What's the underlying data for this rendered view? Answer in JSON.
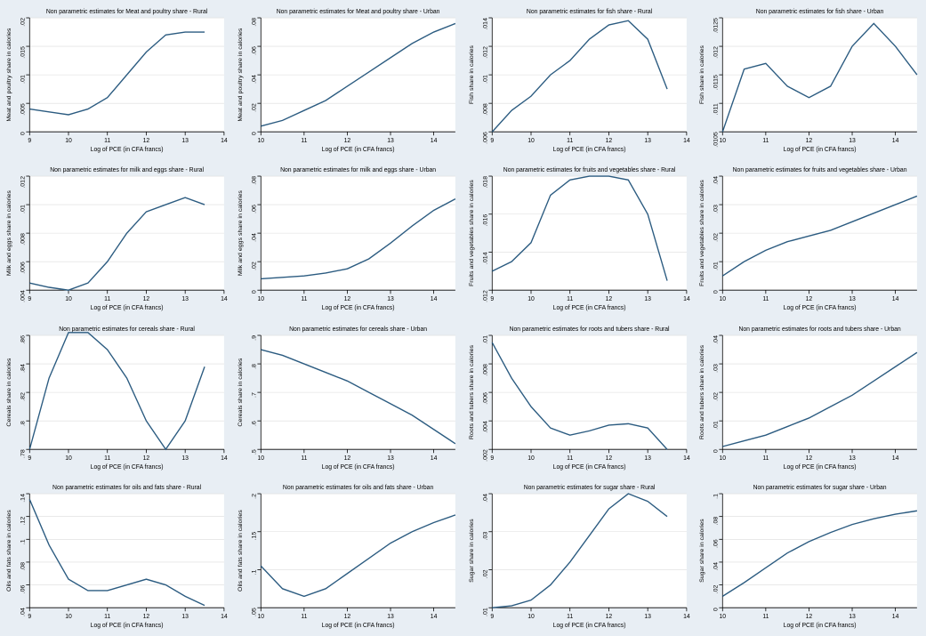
{
  "global": {
    "background_color": "#e8eef4",
    "plot_background_color": "#ffffff",
    "line_color": "#2b5b80",
    "grid_color": "#dcdcdc",
    "axis_color": "#000000",
    "title_fontsize": 7,
    "axis_label_fontsize": 7,
    "tick_fontsize": 7,
    "line_width": 1.4,
    "xlabel": "Log of PCE (in CFA francs)"
  },
  "panels": [
    {
      "id": "meat-rural",
      "title": "Non parametric estimates for Meat and poultry share - Rural",
      "ylabel": "Meat and poultry share in calories",
      "xlim": [
        9,
        14
      ],
      "xticks": [
        9,
        10,
        11,
        12,
        13,
        14
      ],
      "ylim": [
        0,
        0.02
      ],
      "yticks": [
        0,
        0.005,
        0.01,
        0.015,
        0.02
      ],
      "ytick_labels": [
        "0",
        ".005",
        ".01",
        ".015",
        ".02"
      ],
      "series": {
        "x": [
          9,
          9.5,
          10,
          10.5,
          11,
          11.5,
          12,
          12.5,
          13,
          13.5
        ],
        "y": [
          0.004,
          0.0035,
          0.003,
          0.004,
          0.006,
          0.01,
          0.014,
          0.017,
          0.0175,
          0.0175
        ]
      }
    },
    {
      "id": "meat-urban",
      "title": "Non parametric estimates for Meat and poultry share - Urban",
      "ylabel": "Meat and poultry share in calories",
      "xlim": [
        10,
        14.5
      ],
      "xticks": [
        10,
        11,
        12,
        13,
        14
      ],
      "ylim": [
        0,
        0.08
      ],
      "yticks": [
        0,
        0.02,
        0.04,
        0.06,
        0.08
      ],
      "ytick_labels": [
        "0",
        ".02",
        ".04",
        ".06",
        ".08"
      ],
      "series": {
        "x": [
          10,
          10.5,
          11,
          11.5,
          12,
          12.5,
          13,
          13.5,
          14,
          14.5
        ],
        "y": [
          0.004,
          0.008,
          0.015,
          0.022,
          0.032,
          0.042,
          0.052,
          0.062,
          0.07,
          0.076
        ]
      }
    },
    {
      "id": "fish-rural",
      "title": "Non parametric estimates for fish share - Rural",
      "ylabel": "Fish share in calories",
      "xlim": [
        9,
        14
      ],
      "xticks": [
        9,
        10,
        11,
        12,
        13,
        14
      ],
      "ylim": [
        0.006,
        0.014
      ],
      "yticks": [
        0.006,
        0.008,
        0.01,
        0.012,
        0.014
      ],
      "ytick_labels": [
        ".006",
        ".008",
        ".01",
        ".012",
        ".014"
      ],
      "series": {
        "x": [
          9,
          9.5,
          10,
          10.5,
          11,
          11.5,
          12,
          12.5,
          13,
          13.5
        ],
        "y": [
          0.006,
          0.0075,
          0.0085,
          0.01,
          0.011,
          0.0125,
          0.0135,
          0.0138,
          0.0125,
          0.009
        ]
      }
    },
    {
      "id": "fish-urban",
      "title": "Non parametric estimates for fish share - Urban",
      "ylabel": "Fish share in calories",
      "xlim": [
        10,
        14.5
      ],
      "xticks": [
        10,
        11,
        12,
        13,
        14
      ],
      "ylim": [
        0.0105,
        0.0125
      ],
      "yticks": [
        0.0105,
        0.011,
        0.0115,
        0.012,
        0.0125
      ],
      "ytick_labels": [
        ".0105",
        ".011",
        ".0115",
        ".012",
        ".0125"
      ],
      "series": {
        "x": [
          10,
          10.5,
          11,
          11.5,
          12,
          12.5,
          13,
          13.5,
          14,
          14.5
        ],
        "y": [
          0.0105,
          0.0116,
          0.0117,
          0.0113,
          0.0111,
          0.0113,
          0.012,
          0.0124,
          0.012,
          0.0115
        ]
      }
    },
    {
      "id": "milk-rural",
      "title": "Non parametric estimates for milk and eggs share - Rural",
      "ylabel": "Milk and eggs share in calories",
      "xlim": [
        9,
        14
      ],
      "xticks": [
        9,
        10,
        11,
        12,
        13,
        14
      ],
      "ylim": [
        0.004,
        0.012
      ],
      "yticks": [
        0.004,
        0.006,
        0.008,
        0.01,
        0.012
      ],
      "ytick_labels": [
        ".004",
        ".006",
        ".008",
        ".01",
        ".012"
      ],
      "series": {
        "x": [
          9,
          9.5,
          10,
          10.5,
          11,
          11.5,
          12,
          12.5,
          13,
          13.5
        ],
        "y": [
          0.0045,
          0.0042,
          0.004,
          0.0045,
          0.006,
          0.008,
          0.0095,
          0.01,
          0.0105,
          0.01
        ]
      }
    },
    {
      "id": "milk-urban",
      "title": "Non parametric estimates for milk and eggs share - Urban",
      "ylabel": "Milk and eggs share in calories",
      "xlim": [
        10,
        14.5
      ],
      "xticks": [
        10,
        11,
        12,
        13,
        14
      ],
      "ylim": [
        0,
        0.08
      ],
      "yticks": [
        0,
        0.02,
        0.04,
        0.06,
        0.08
      ],
      "ytick_labels": [
        "0",
        ".02",
        ".04",
        ".06",
        ".08"
      ],
      "series": {
        "x": [
          10,
          10.5,
          11,
          11.5,
          12,
          12.5,
          13,
          13.5,
          14,
          14.5
        ],
        "y": [
          0.008,
          0.009,
          0.01,
          0.012,
          0.015,
          0.022,
          0.033,
          0.045,
          0.056,
          0.064
        ]
      }
    },
    {
      "id": "fruits-rural",
      "title": "Non parametric estimates for fruits and vegetables share - Rural",
      "ylabel": "Fruits and vegetables share in calories",
      "xlim": [
        9,
        14
      ],
      "xticks": [
        9,
        10,
        11,
        12,
        13,
        14
      ],
      "ylim": [
        0.012,
        0.018
      ],
      "yticks": [
        0.012,
        0.014,
        0.016,
        0.018
      ],
      "ytick_labels": [
        ".012",
        ".014",
        ".016",
        ".018"
      ],
      "series": {
        "x": [
          9,
          9.5,
          10,
          10.5,
          11,
          11.5,
          12,
          12.5,
          13,
          13.5
        ],
        "y": [
          0.013,
          0.0135,
          0.0145,
          0.017,
          0.0178,
          0.018,
          0.018,
          0.0178,
          0.016,
          0.0125
        ]
      }
    },
    {
      "id": "fruits-urban",
      "title": "Non parametric estimates for fruits and vegetables share - Urban",
      "ylabel": "Fruits and vegetables share in calories",
      "xlim": [
        10,
        14.5
      ],
      "xticks": [
        10,
        11,
        12,
        13,
        14
      ],
      "ylim": [
        0,
        0.04
      ],
      "yticks": [
        0,
        0.01,
        0.02,
        0.03,
        0.04
      ],
      "ytick_labels": [
        "0",
        ".01",
        ".02",
        ".03",
        ".04"
      ],
      "series": {
        "x": [
          10,
          10.5,
          11,
          11.5,
          12,
          12.5,
          13,
          13.5,
          14,
          14.5
        ],
        "y": [
          0.005,
          0.01,
          0.014,
          0.017,
          0.019,
          0.021,
          0.024,
          0.027,
          0.03,
          0.033
        ]
      }
    },
    {
      "id": "cereals-rural",
      "title": "Non parametric estimates for cereals share - Rural",
      "ylabel": "Cereals share in calories",
      "xlim": [
        9,
        14
      ],
      "xticks": [
        9,
        10,
        11,
        12,
        13,
        14
      ],
      "ylim": [
        0.78,
        0.86
      ],
      "yticks": [
        0.78,
        0.8,
        0.82,
        0.84,
        0.86
      ],
      "ytick_labels": [
        ".78",
        ".8",
        ".82",
        ".84",
        ".86"
      ],
      "series": {
        "x": [
          9,
          9.5,
          10,
          10.5,
          11,
          11.5,
          12,
          12.5,
          13,
          13.5
        ],
        "y": [
          0.78,
          0.83,
          0.862,
          0.862,
          0.85,
          0.83,
          0.8,
          0.78,
          0.8,
          0.838
        ]
      }
    },
    {
      "id": "cereals-urban",
      "title": "Non parametric estimates for cereals share - Urban",
      "ylabel": "Cereals share in calories",
      "xlim": [
        10,
        14.5
      ],
      "xticks": [
        10,
        11,
        12,
        13,
        14
      ],
      "ylim": [
        0.5,
        0.9
      ],
      "yticks": [
        0.5,
        0.6,
        0.7,
        0.8,
        0.9
      ],
      "ytick_labels": [
        ".5",
        ".6",
        ".7",
        ".8",
        ".9"
      ],
      "series": {
        "x": [
          10,
          10.5,
          11,
          11.5,
          12,
          12.5,
          13,
          13.5,
          14,
          14.5
        ],
        "y": [
          0.85,
          0.83,
          0.8,
          0.77,
          0.74,
          0.7,
          0.66,
          0.62,
          0.57,
          0.52
        ]
      }
    },
    {
      "id": "roots-rural",
      "title": "Non parametric estimates for roots and tubers share - Rural",
      "ylabel": "Roots and tubers share in calories",
      "xlim": [
        9,
        14
      ],
      "xticks": [
        9,
        10,
        11,
        12,
        13,
        14
      ],
      "ylim": [
        0.002,
        0.01
      ],
      "yticks": [
        0.002,
        0.004,
        0.006,
        0.008,
        0.01
      ],
      "ytick_labels": [
        ".002",
        ".004",
        ".006",
        ".008",
        ".01"
      ],
      "series": {
        "x": [
          9,
          9.5,
          10,
          10.5,
          11,
          11.5,
          12,
          12.5,
          13,
          13.5
        ],
        "y": [
          0.0095,
          0.007,
          0.005,
          0.0035,
          0.003,
          0.0033,
          0.0037,
          0.0038,
          0.0035,
          0.002
        ]
      }
    },
    {
      "id": "roots-urban",
      "title": "Non parametric estimates for roots and tubers share - Urban",
      "ylabel": "Roots and tubers share in calories",
      "xlim": [
        10,
        14.5
      ],
      "xticks": [
        10,
        11,
        12,
        13,
        14
      ],
      "ylim": [
        0,
        0.04
      ],
      "yticks": [
        0,
        0.01,
        0.02,
        0.03,
        0.04
      ],
      "ytick_labels": [
        "0",
        ".01",
        ".02",
        ".03",
        ".04"
      ],
      "series": {
        "x": [
          10,
          10.5,
          11,
          11.5,
          12,
          12.5,
          13,
          13.5,
          14,
          14.5
        ],
        "y": [
          0.001,
          0.003,
          0.005,
          0.008,
          0.011,
          0.015,
          0.019,
          0.024,
          0.029,
          0.034
        ]
      }
    },
    {
      "id": "oils-rural",
      "title": "Non parametric estimates for oils and fats share - Rural",
      "ylabel": "Oils and fats share in calories",
      "xlim": [
        9,
        14
      ],
      "xticks": [
        9,
        10,
        11,
        12,
        13,
        14
      ],
      "ylim": [
        0.04,
        0.14
      ],
      "yticks": [
        0.04,
        0.06,
        0.08,
        0.1,
        0.12,
        0.14
      ],
      "ytick_labels": [
        ".04",
        ".06",
        ".08",
        ".1",
        ".12",
        ".14"
      ],
      "series": {
        "x": [
          9,
          9.5,
          10,
          10.5,
          11,
          11.5,
          12,
          12.5,
          13,
          13.5
        ],
        "y": [
          0.135,
          0.095,
          0.065,
          0.055,
          0.055,
          0.06,
          0.065,
          0.06,
          0.05,
          0.042
        ]
      }
    },
    {
      "id": "oils-urban",
      "title": "Non parametric estimates for oils and fats share - Urban",
      "ylabel": "Oils and fats share in calories",
      "xlim": [
        10,
        14.5
      ],
      "xticks": [
        10,
        11,
        12,
        13,
        14
      ],
      "ylim": [
        0.05,
        0.2
      ],
      "yticks": [
        0.05,
        0.1,
        0.15,
        0.2
      ],
      "ytick_labels": [
        ".05",
        ".1",
        ".15",
        ".2"
      ],
      "series": {
        "x": [
          10,
          10.5,
          11,
          11.5,
          12,
          12.5,
          13,
          13.5,
          14,
          14.5
        ],
        "y": [
          0.105,
          0.075,
          0.065,
          0.075,
          0.095,
          0.115,
          0.135,
          0.15,
          0.162,
          0.172
        ]
      }
    },
    {
      "id": "sugar-rural",
      "title": "Non parametric estimates for sugar share - Rural",
      "ylabel": "Sugar share in calories",
      "xlim": [
        9,
        14
      ],
      "xticks": [
        9,
        10,
        11,
        12,
        13,
        14
      ],
      "ylim": [
        0.01,
        0.04
      ],
      "yticks": [
        0.01,
        0.02,
        0.03,
        0.04
      ],
      "ytick_labels": [
        ".01",
        ".02",
        ".03",
        ".04"
      ],
      "series": {
        "x": [
          9,
          9.5,
          10,
          10.5,
          11,
          11.5,
          12,
          12.5,
          13,
          13.5
        ],
        "y": [
          0.01,
          0.0105,
          0.012,
          0.016,
          0.022,
          0.029,
          0.036,
          0.04,
          0.038,
          0.034
        ]
      }
    },
    {
      "id": "sugar-urban",
      "title": "Non parametric estimates for sugar share - Urban",
      "ylabel": "Sugar share in calories",
      "xlim": [
        10,
        14.5
      ],
      "xticks": [
        10,
        11,
        12,
        13,
        14
      ],
      "ylim": [
        0,
        0.1
      ],
      "yticks": [
        0,
        0.02,
        0.04,
        0.06,
        0.08,
        0.1
      ],
      "ytick_labels": [
        "0",
        ".02",
        ".04",
        ".06",
        ".08",
        ".1"
      ],
      "series": {
        "x": [
          10,
          10.5,
          11,
          11.5,
          12,
          12.5,
          13,
          13.5,
          14,
          14.5
        ],
        "y": [
          0.01,
          0.022,
          0.035,
          0.048,
          0.058,
          0.066,
          0.073,
          0.078,
          0.082,
          0.085
        ]
      }
    }
  ]
}
